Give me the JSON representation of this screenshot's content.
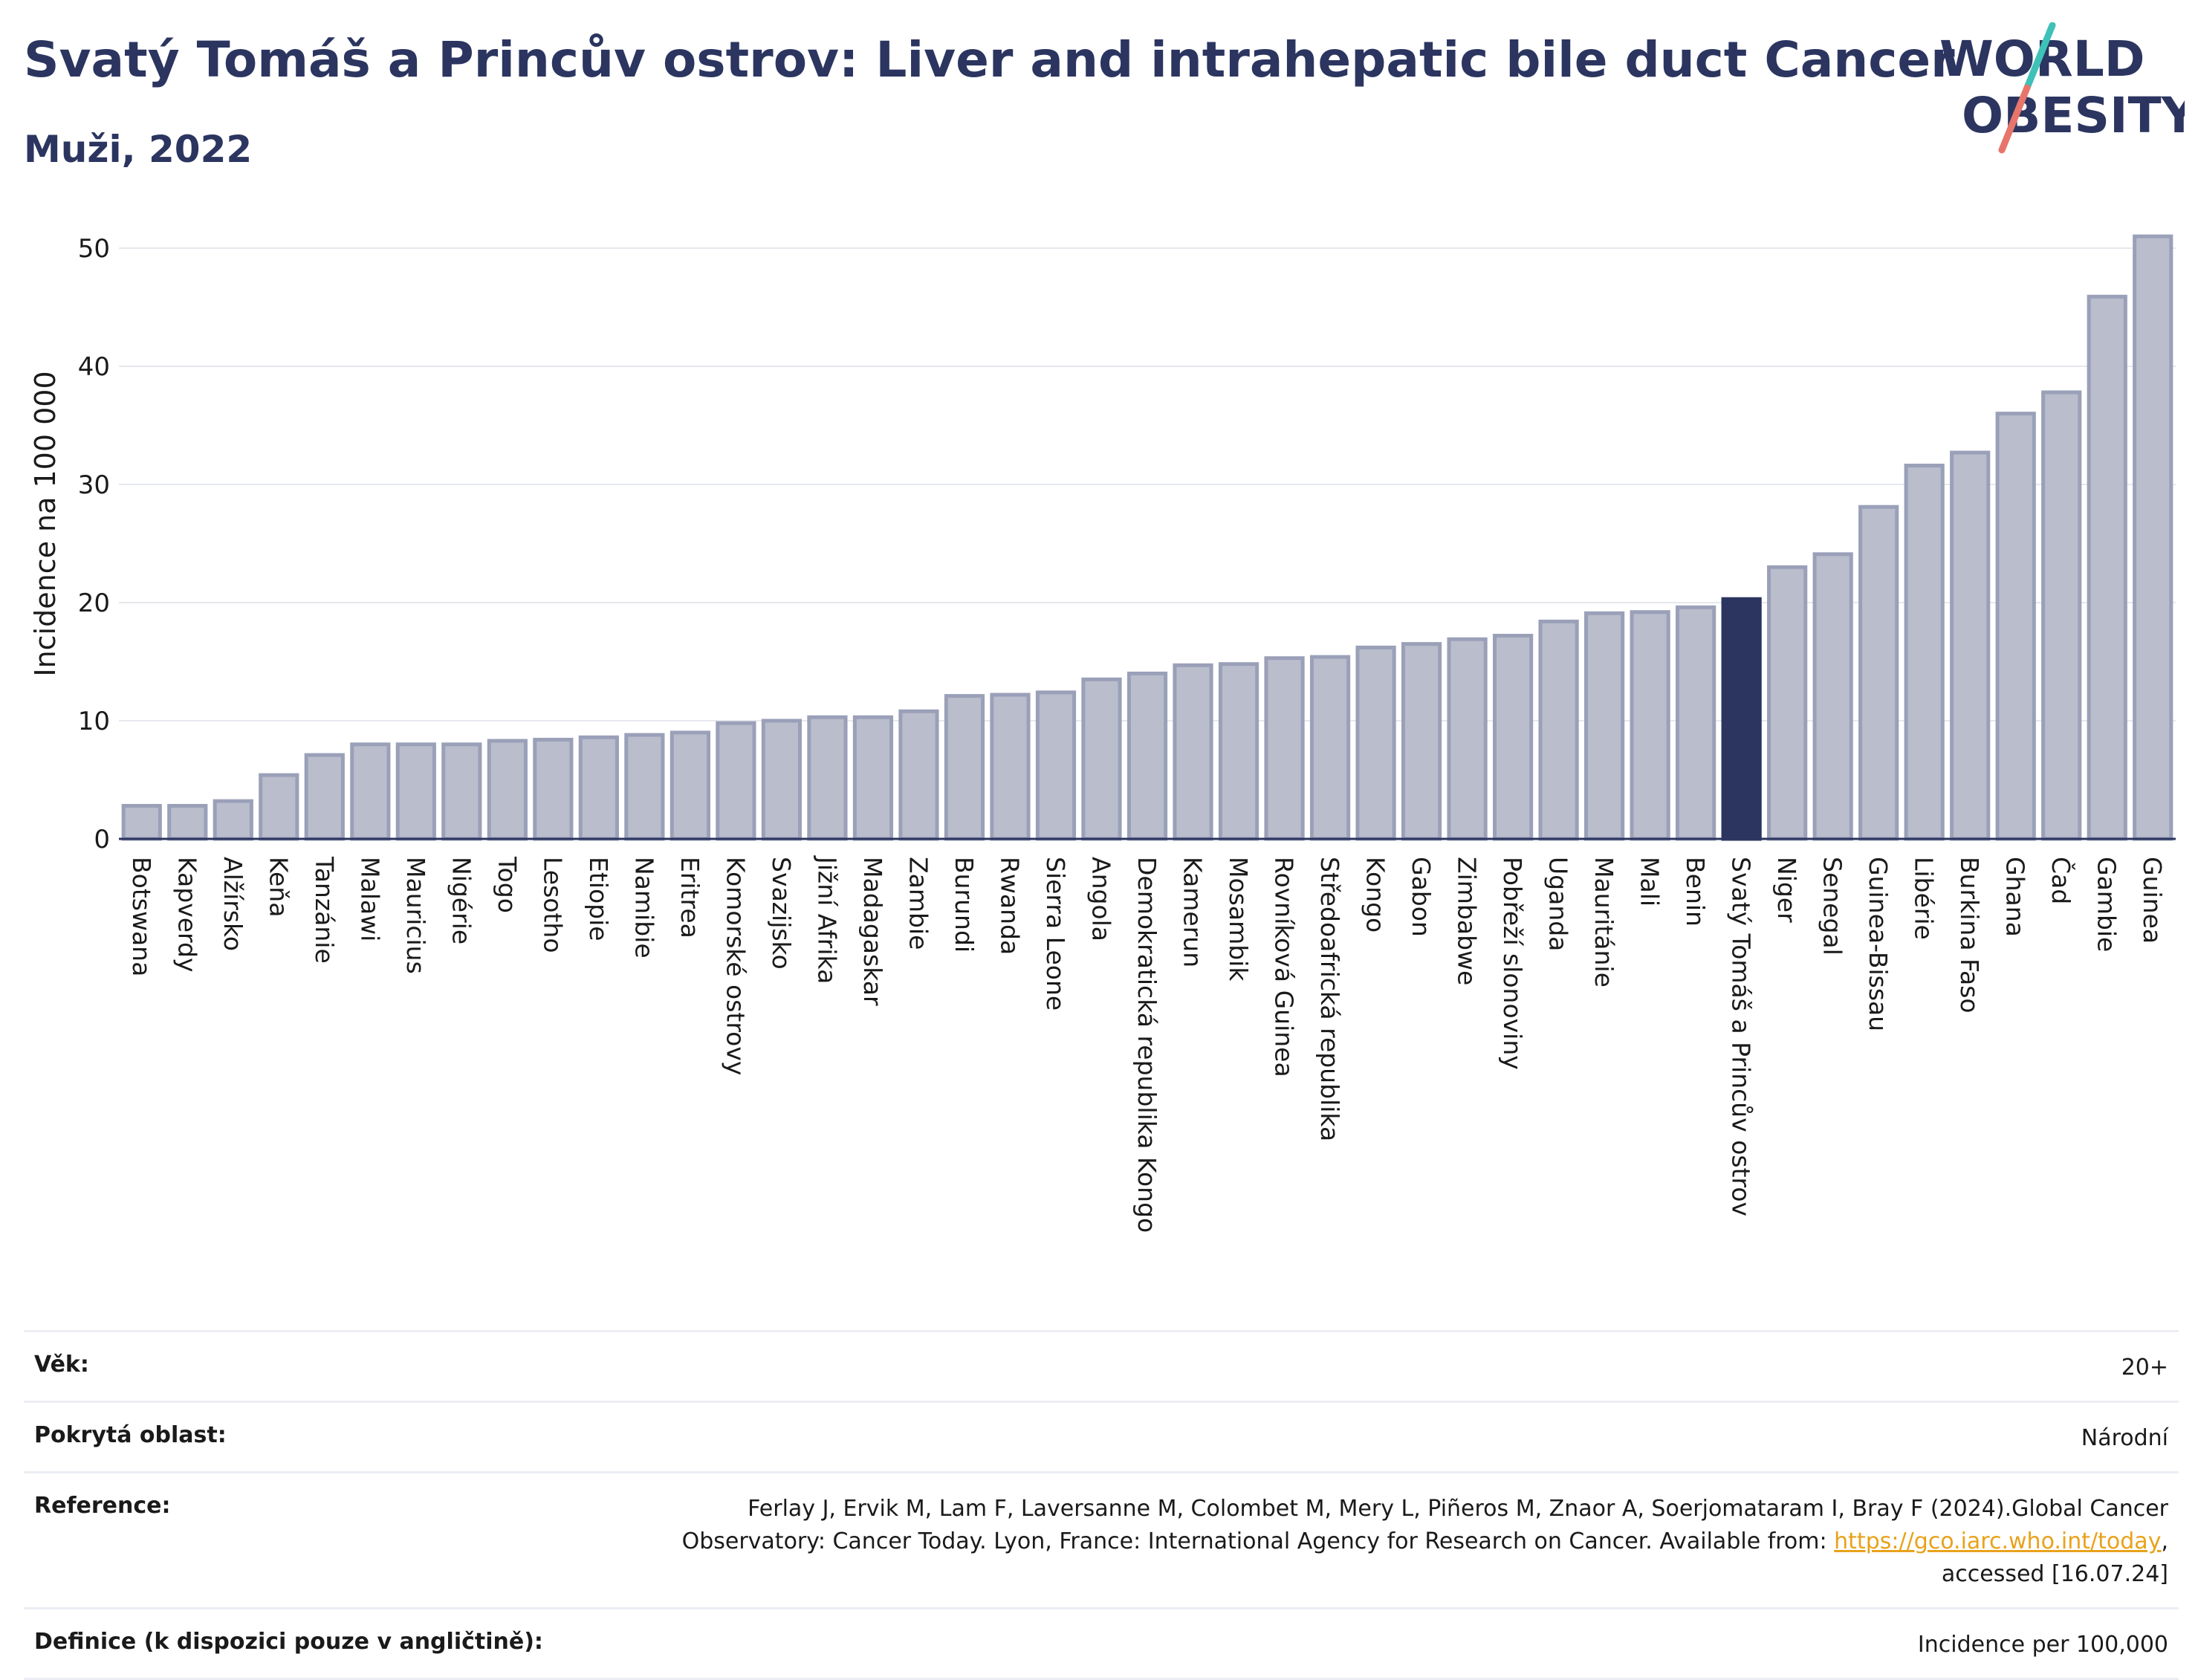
{
  "header": {
    "title": "Svatý Tomáš a Princův ostrov: Liver and intrahepatic bile duct Cancer",
    "subtitle": "Muži, 2022"
  },
  "logo": {
    "line1": "WORLD",
    "line2": "OBESITY"
  },
  "colors": {
    "bar_fill": "#b9bdcc",
    "bar_stroke": "#9aa0b8",
    "highlight": "#2b3560",
    "grid": "#e6e8ee",
    "title": "#2b3560",
    "logo_teal": "#3ec1b9",
    "logo_coral": "#e8756b",
    "link": "#e8a21b"
  },
  "chart_data": {
    "type": "bar",
    "ylabel": "Incidence na 100 000",
    "xlabel": "",
    "ylim": [
      0,
      53
    ],
    "yticks": [
      0,
      10,
      20,
      30,
      40,
      50
    ],
    "grid": true,
    "highlight": "Svatý Tomáš a Princův ostrov",
    "categories": [
      "Botswana",
      "Kapverdy",
      "Alžírsko",
      "Keňa",
      "Tanzánie",
      "Malawi",
      "Mauricius",
      "Nigérie",
      "Togo",
      "Lesotho",
      "Etiopie",
      "Namibie",
      "Eritrea",
      "Komorské ostrovy",
      "Svazijsko",
      "Jižní Afrika",
      "Madagaskar",
      "Zambie",
      "Burundi",
      "Rwanda",
      "Sierra Leone",
      "Angola",
      "Demokratická republika Kongo",
      "Kamerun",
      "Mosambik",
      "Rovníková Guinea",
      "Středoafrická republika",
      "Kongo",
      "Gabon",
      "Zimbabwe",
      "Pobřeží slonoviny",
      "Uganda",
      "Mauritánie",
      "Mali",
      "Benin",
      "Svatý Tomáš a Princův ostrov",
      "Niger",
      "Senegal",
      "Guinea-Bissau",
      "Libérie",
      "Burkina Faso",
      "Ghana",
      "Čad",
      "Gambie",
      "Guinea"
    ],
    "values": [
      2.8,
      2.8,
      3.2,
      5.4,
      7.1,
      8.0,
      8.0,
      8.0,
      8.3,
      8.4,
      8.6,
      8.8,
      9.0,
      9.8,
      10.0,
      10.3,
      10.3,
      10.8,
      12.1,
      12.2,
      12.4,
      13.5,
      14.0,
      14.7,
      14.8,
      15.3,
      15.4,
      16.2,
      16.5,
      16.9,
      17.2,
      18.4,
      19.1,
      19.2,
      19.6,
      20.3,
      23.0,
      24.1,
      28.1,
      31.6,
      32.7,
      36.0,
      37.8,
      45.9,
      51.0
    ]
  },
  "info": {
    "age_label": "Věk:",
    "age_value": "20+",
    "area_label": "Pokrytá oblast:",
    "area_value": "Národní",
    "ref_label": "Reference:",
    "ref_text_1": "Ferlay J, Ervik M, Lam F, Laversanne M, Colombet M, Mery L, Piñeros M, Znaor A, Soerjomataram I, Bray F (2024).Global Cancer",
    "ref_text_2": "Observatory: Cancer Today. Lyon, France: International Agency for Research on Cancer. Available from: ",
    "ref_link": "https://gco.iarc.who.int/today",
    "ref_text_3": ",",
    "ref_text_4": "accessed [16.07.24]",
    "def_label": "Definice (k dispozici pouze v angličtině):",
    "def_value": "Incidence per 100,000"
  }
}
